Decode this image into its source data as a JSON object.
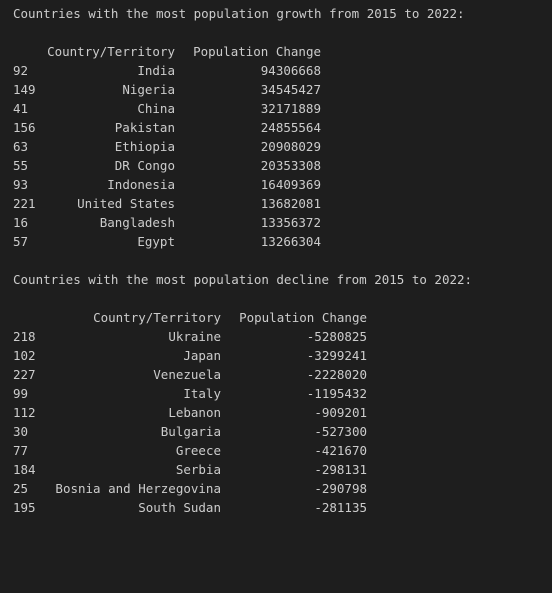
{
  "growth": {
    "heading": "Countries with the most population growth from 2015 to 2022:",
    "columns": [
      "Country/Territory",
      "Population Change"
    ],
    "rows": [
      {
        "index": "92",
        "country": "India",
        "change": "94306668"
      },
      {
        "index": "149",
        "country": "Nigeria",
        "change": "34545427"
      },
      {
        "index": "41",
        "country": "China",
        "change": "32171889"
      },
      {
        "index": "156",
        "country": "Pakistan",
        "change": "24855564"
      },
      {
        "index": "63",
        "country": "Ethiopia",
        "change": "20908029"
      },
      {
        "index": "55",
        "country": "DR Congo",
        "change": "20353308"
      },
      {
        "index": "93",
        "country": "Indonesia",
        "change": "16409369"
      },
      {
        "index": "221",
        "country": "United States",
        "change": "13682081"
      },
      {
        "index": "16",
        "country": "Bangladesh",
        "change": "13356372"
      },
      {
        "index": "57",
        "country": "Egypt",
        "change": "13266304"
      }
    ]
  },
  "decline": {
    "heading": "Countries with the most population decline from 2015 to 2022:",
    "columns": [
      "Country/Territory",
      "Population Change"
    ],
    "rows": [
      {
        "index": "218",
        "country": "Ukraine",
        "change": "-5280825"
      },
      {
        "index": "102",
        "country": "Japan",
        "change": "-3299241"
      },
      {
        "index": "227",
        "country": "Venezuela",
        "change": "-2228020"
      },
      {
        "index": "99",
        "country": "Italy",
        "change": "-1195432"
      },
      {
        "index": "112",
        "country": "Lebanon",
        "change": "-909201"
      },
      {
        "index": "30",
        "country": "Bulgaria",
        "change": "-527300"
      },
      {
        "index": "77",
        "country": "Greece",
        "change": "-421670"
      },
      {
        "index": "184",
        "country": "Serbia",
        "change": "-298131"
      },
      {
        "index": "25",
        "country": "Bosnia and Herzegovina",
        "change": "-290798"
      },
      {
        "index": "195",
        "country": "South Sudan",
        "change": "-281135"
      }
    ]
  }
}
